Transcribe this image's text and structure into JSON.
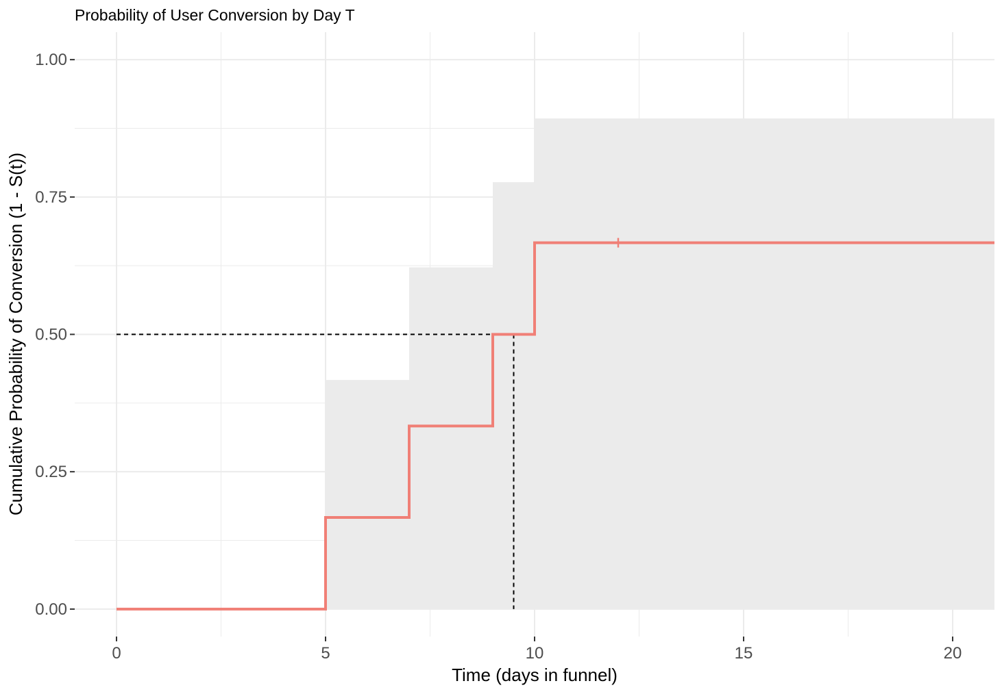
{
  "chart_data": {
    "type": "line",
    "title": "Probability of User Conversion by Day T",
    "xlabel": "Time (days in funnel)",
    "ylabel": "Cumulative Probability of Conversion (1 - S(t))",
    "xlim": [
      -1,
      21
    ],
    "ylim": [
      -0.05,
      1.05
    ],
    "x_ticks": [
      0,
      5,
      10,
      15,
      20
    ],
    "x_tick_labels": [
      "0",
      "5",
      "10",
      "15",
      "20"
    ],
    "y_ticks": [
      0,
      0.25,
      0.5,
      0.75,
      1.0
    ],
    "y_tick_labels": [
      "0.00",
      "0.25",
      "0.50",
      "0.75",
      "1.00"
    ],
    "grid": true,
    "legend": "none",
    "colors": {
      "curve": "#f07f76",
      "band": "#ebebeb",
      "grid": "#ebebeb",
      "median": "#000000"
    },
    "series": [
      {
        "kind": "step",
        "x": [
          0,
          5,
          7,
          9,
          10,
          21
        ],
        "y": [
          0,
          0.1667,
          0.3333,
          0.5,
          0.6667,
          0.6667
        ]
      }
    ],
    "confidence_band": {
      "x": [
        5,
        7,
        9,
        10,
        21
      ],
      "lower": [
        0,
        0,
        0,
        0,
        0
      ],
      "upper": [
        0.417,
        0.622,
        0.777,
        0.893,
        0.893
      ]
    },
    "censor_marks": [
      {
        "x": 12,
        "y": 0.6667
      }
    ],
    "median_lines": {
      "x": 9.5,
      "y": 0.5
    }
  }
}
